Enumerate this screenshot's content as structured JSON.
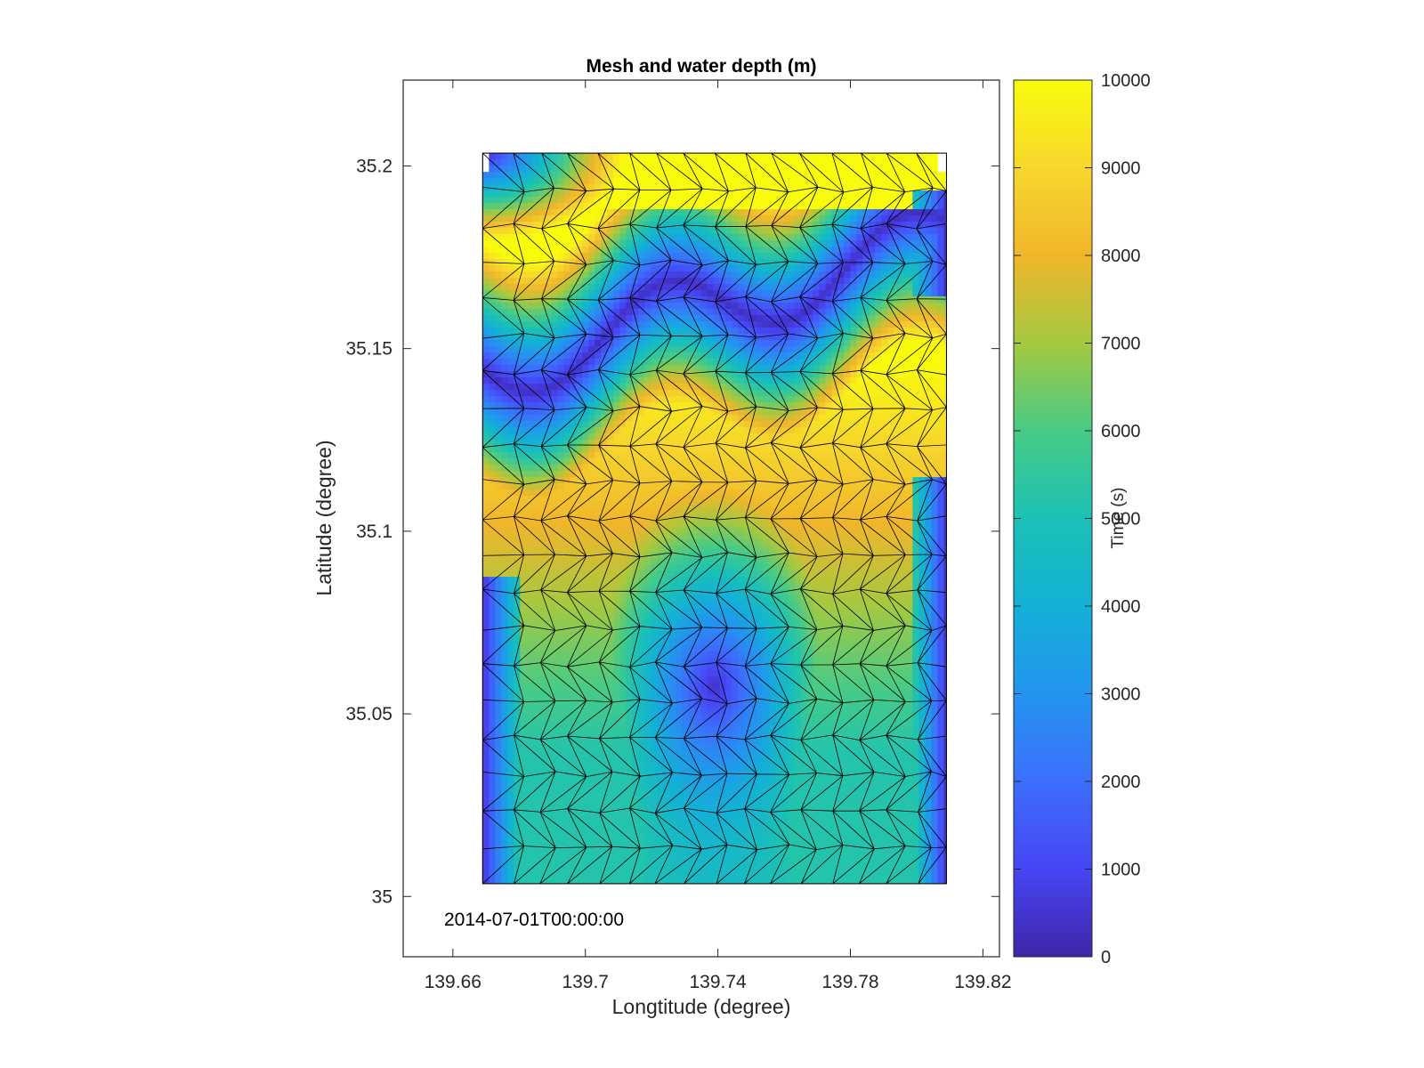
{
  "chart_data": {
    "type": "heatmap",
    "title": "Mesh and water depth (m)",
    "xlabel": "Longtitude (degree)",
    "ylabel": "Latitude (degree)",
    "xlim": [
      139.645,
      139.825
    ],
    "ylim": [
      34.9835,
      35.2235
    ],
    "xticks": [
      139.66,
      139.7,
      139.74,
      139.78,
      139.82
    ],
    "yticks": [
      35,
      35.05,
      35.1,
      35.15,
      35.2
    ],
    "xtick_labels": [
      "139.66",
      "139.7",
      "139.74",
      "139.78",
      "139.82"
    ],
    "ytick_labels": [
      "35",
      "35.05",
      "35.1",
      "35.15",
      "35.2"
    ],
    "annotation": "2014-07-01T00:00:00",
    "domain": {
      "lon_range": [
        139.669,
        139.809
      ],
      "lat_range": [
        35.0035,
        35.2035
      ]
    },
    "mesh": {
      "columns": 16,
      "rows": 20,
      "line_color": "#000000"
    },
    "colorbar": {
      "label": "Time (s)",
      "limits": [
        0,
        10000
      ],
      "ticks": [
        0,
        1000,
        2000,
        3000,
        4000,
        5000,
        6000,
        7000,
        8000,
        9000,
        10000
      ],
      "tick_labels": [
        "0",
        "1000",
        "2000",
        "3000",
        "4000",
        "5000",
        "6000",
        "7000",
        "8000",
        "9000",
        "10000"
      ],
      "colormap": "parula"
    }
  }
}
